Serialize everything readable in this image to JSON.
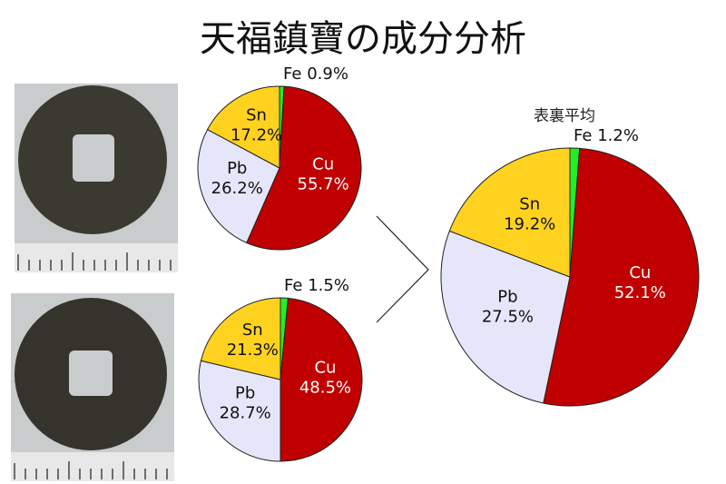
{
  "title": "天福鎮寶の成分分析",
  "chart_data": [
    {
      "type": "pie",
      "categories": [
        "Fe",
        "Cu",
        "Pb",
        "Sn"
      ],
      "values": [
        0.9,
        55.7,
        26.2,
        17.2
      ],
      "value_labels": [
        "0.9%",
        "55.7%",
        "26.2%",
        "17.2%"
      ],
      "colors": [
        "#22ee22",
        "#c00000",
        "#e6e6fa",
        "#ffd21f"
      ]
    },
    {
      "type": "pie",
      "categories": [
        "Fe",
        "Cu",
        "Pb",
        "Sn"
      ],
      "values": [
        1.5,
        48.5,
        28.7,
        21.3
      ],
      "value_labels": [
        "1.5%",
        "48.5%",
        "28.7%",
        "21.3%"
      ],
      "colors": [
        "#22ee22",
        "#c00000",
        "#e6e6fa",
        "#ffd21f"
      ]
    },
    {
      "type": "pie",
      "title": "表裏平均",
      "categories": [
        "Fe",
        "Cu",
        "Pb",
        "Sn"
      ],
      "values": [
        1.2,
        52.1,
        27.5,
        19.2
      ],
      "value_labels": [
        "1.2%",
        "52.1%",
        "27.5%",
        "19.2%"
      ],
      "colors": [
        "#22ee22",
        "#c00000",
        "#e6e6fa",
        "#ffd21f"
      ]
    }
  ]
}
